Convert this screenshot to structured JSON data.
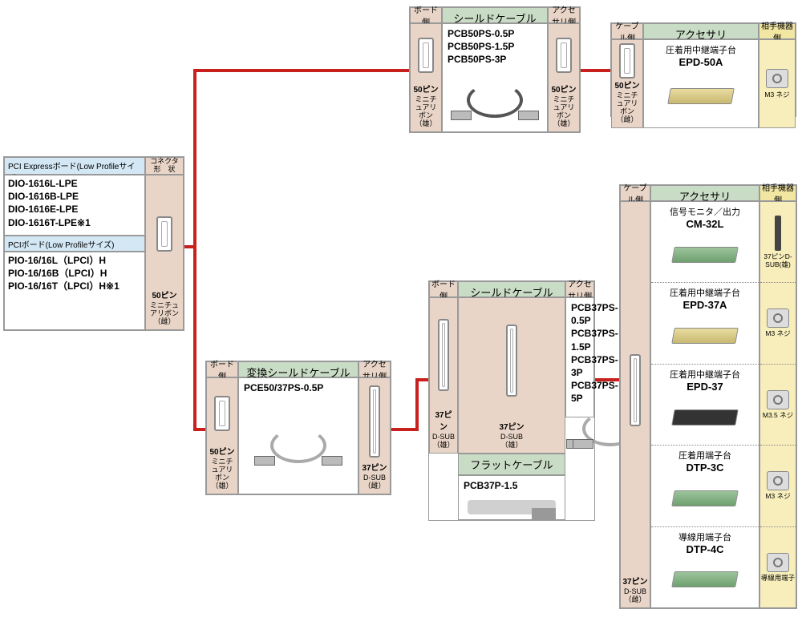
{
  "colors": {
    "wire": "#c8201c",
    "header_blue": "#d3e7f4",
    "header_tan": "#e9d5c7",
    "header_green": "#c9dcc5",
    "header_yellow": "#f2e6a3",
    "cell_yellow": "#f7eebb",
    "border": "#999999"
  },
  "source": {
    "pci_express_header": "PCI Expressボード(Low Profileサイズ)",
    "connector_header": "コネクタ\n形　状",
    "pci_express_list": [
      "DIO-1616L-LPE",
      "DIO-1616B-LPE",
      "DIO-1616E-LPE",
      "DIO-1616T-LPE※1"
    ],
    "pci_header": "PCIボード(Low Profileサイズ)",
    "pci_list": [
      "PIO-16/16L（LPCI）H",
      "PIO-16/16B（LPCI）H",
      "PIO-16/16T（LPCI）H※1"
    ],
    "connector": {
      "bold": "50ピン",
      "sub": "ミニチュアリボン\n（雌）"
    }
  },
  "shield50": {
    "board_side_hdr": "ボード側",
    "title": "シールドケーブル",
    "acc_side_hdr": "アクセサリ側",
    "left_conn": {
      "bold": "50ピン",
      "sub": "ミニチュアリボン\n（雄）"
    },
    "right_conn": {
      "bold": "50ピン",
      "sub": "ミニチュアリボン\n（雄）"
    },
    "models": [
      "PCB50PS-0.5P",
      "PCB50PS-1.5P",
      "PCB50PS-3P"
    ]
  },
  "accessory50": {
    "cable_side_hdr": "ケーブル側",
    "title": "アクセサリ",
    "device_side_hdr": "相手機器側",
    "conn": {
      "bold": "50ピン",
      "sub": "ミニチュアリボン\n（雌）"
    },
    "item": {
      "sub": "圧着用中継端子台",
      "model": "EPD-50A"
    },
    "screw": "M3 ネジ"
  },
  "convert": {
    "board_side_hdr": "ボード側",
    "title": "変換シールドケーブル",
    "acc_side_hdr": "アクセサリ側",
    "left_conn": {
      "bold": "50ピン",
      "sub": "ミニチュアリボン\n（雄）"
    },
    "right_conn": {
      "bold": "37ピン",
      "sub": "D-SUB\n（雌）"
    },
    "model": "PCE50/37PS-0.5P"
  },
  "shield37": {
    "board_side_hdr": "ボード側",
    "title": "シールドケーブル",
    "acc_side_hdr": "アクセサリ側",
    "left_conn": {
      "bold": "37ピン",
      "sub": "D-SUB\n（雄）"
    },
    "right_conn": {
      "bold": "37ピン",
      "sub": "D-SUB\n（雄）"
    },
    "models": [
      "PCB37PS-0.5P",
      "PCB37PS-1.5P",
      "PCB37PS-3P",
      "PCB37PS-5P"
    ],
    "flat_title": "フラットケーブル",
    "flat_model": "PCB37P-1.5"
  },
  "accessory37": {
    "cable_side_hdr": "ケーブル側",
    "title": "アクセサリ",
    "device_side_hdr": "相手機器側",
    "conn": {
      "bold": "37ピン",
      "sub": "D-SUB\n（雌）"
    },
    "items": [
      {
        "sub": "信号モニタ／出力",
        "model": "CM-32L",
        "screw": "37ピンD-SUB(雄)"
      },
      {
        "sub": "圧着用中継端子台",
        "model": "EPD-37A",
        "screw": "M3 ネジ"
      },
      {
        "sub": "圧着用中継端子台",
        "model": "EPD-37",
        "screw": "M3.5 ネジ"
      },
      {
        "sub": "圧着用端子台",
        "model": "DTP-3C",
        "screw": "M3 ネジ"
      },
      {
        "sub": "導線用端子台",
        "model": "DTP-4C",
        "screw": "導線用端子"
      }
    ]
  }
}
